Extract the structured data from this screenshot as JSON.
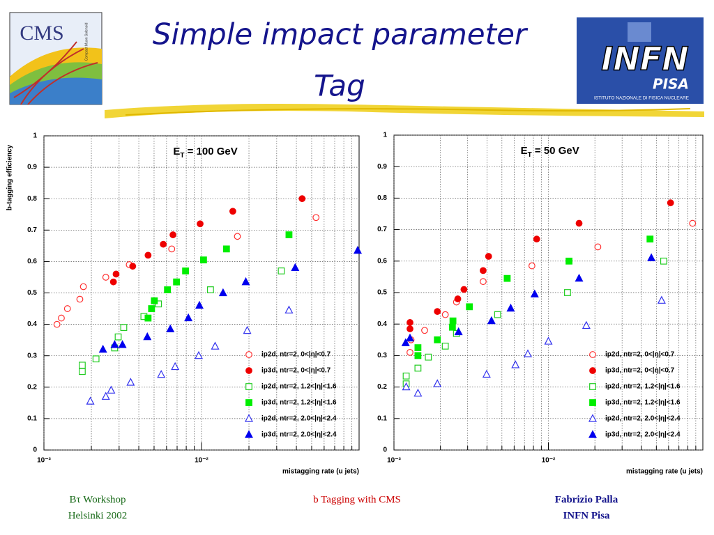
{
  "slide": {
    "title": [
      "Simple impact parameter",
      "Tag"
    ],
    "cms_logo": {
      "text": "CMS",
      "caption": "Compact Muon Solenoid"
    },
    "infn_logo": {
      "text": "INFN",
      "city": "PISA",
      "caption": "ISTITUTO NAZIONALE DI FISICA NUCLEARE"
    },
    "footer": {
      "left": [
        "Bτ Workshop",
        "Helsinki 2002"
      ],
      "center": "b Tagging with CMS",
      "right": [
        "Fabrizio Palla",
        "INFN Pisa"
      ]
    }
  },
  "chart_data": [
    {
      "type": "scatter",
      "annotation": [
        "E",
        "T",
        " = 100 GeV"
      ],
      "y_label": "b-tagging efficiency",
      "x_label": "mistagging rate (u jets)",
      "x_log": true,
      "xlim": [
        0.001,
        0.1
      ],
      "xticks": [
        {
          "value": 0.001,
          "label": "10⁻³"
        },
        {
          "value": 0.01,
          "label": "10⁻²"
        }
      ],
      "xminor": [
        0.002,
        0.003,
        0.004,
        0.005,
        0.006,
        0.007,
        0.008,
        0.009,
        0.02,
        0.03,
        0.04,
        0.05,
        0.06,
        0.07,
        0.08,
        0.09
      ],
      "ylim": [
        0,
        1
      ],
      "yticks": [
        0,
        0.1,
        0.2,
        0.3,
        0.4,
        0.5,
        0.6,
        0.7,
        0.8,
        0.9,
        1
      ],
      "grid": true,
      "legend": "lower right",
      "series": [
        {
          "name": "ip2d, ntr=2, 0<|η|<0.7",
          "color": "#ff3030",
          "marker": "circle",
          "filled": false,
          "x": [
            0.00121,
            0.00129,
            0.00141,
            0.00169,
            0.00178,
            0.00247,
            0.00348,
            0.00647,
            0.0169,
            0.0533
          ],
          "values": [
            0.4,
            0.42,
            0.45,
            0.48,
            0.52,
            0.55,
            0.59,
            0.64,
            0.68,
            0.74
          ]
        },
        {
          "name": "ip3d, ntr=2, 0<|η|<0.7",
          "color": "#ee0000",
          "marker": "circle",
          "filled": true,
          "x": [
            0.00276,
            0.00287,
            0.00366,
            0.00458,
            0.00572,
            0.00659,
            0.0098,
            0.0158,
            0.0435
          ],
          "values": [
            0.535,
            0.56,
            0.585,
            0.62,
            0.655,
            0.685,
            0.72,
            0.76,
            0.8
          ]
        },
        {
          "name": "ip2d, ntr=2, 1.2<|η|<1.6",
          "color": "#22cc22",
          "marker": "square",
          "filled": false,
          "x": [
            0.00175,
            0.00175,
            0.00214,
            0.00281,
            0.00296,
            0.00321,
            0.00431,
            0.00533,
            0.0114,
            0.0321
          ],
          "values": [
            0.25,
            0.27,
            0.29,
            0.325,
            0.36,
            0.39,
            0.425,
            0.465,
            0.51,
            0.57
          ]
        },
        {
          "name": "ip3d, ntr=2, 1.2<|η|<1.6",
          "color": "#00ee00",
          "marker": "square",
          "filled": true,
          "x": [
            0.00458,
            0.00482,
            0.00502,
            0.00608,
            0.00694,
            0.00792,
            0.0103,
            0.0144,
            0.0359
          ],
          "values": [
            0.42,
            0.45,
            0.475,
            0.51,
            0.535,
            0.57,
            0.605,
            0.64,
            0.685
          ]
        },
        {
          "name": "ip2d, ntr=2, 2.0<|η|<2.4",
          "color": "#3333ee",
          "marker": "triangle",
          "filled": false,
          "x": [
            0.00197,
            0.00247,
            0.00267,
            0.00355,
            0.00555,
            0.0068,
            0.0096,
            0.0122,
            0.0195,
            0.0359
          ],
          "values": [
            0.155,
            0.17,
            0.19,
            0.215,
            0.24,
            0.265,
            0.3,
            0.33,
            0.38,
            0.445
          ]
        },
        {
          "name": "ip3d, ntr=2, 2.0<|η|<2.4",
          "color": "#0000ee",
          "marker": "triangle",
          "filled": true,
          "x": [
            0.00237,
            0.00281,
            0.00315,
            0.00453,
            0.00634,
            0.00825,
            0.0097,
            0.0137,
            0.0191,
            0.0393,
            0.098
          ],
          "values": [
            0.32,
            0.335,
            0.335,
            0.36,
            0.385,
            0.42,
            0.46,
            0.5,
            0.535,
            0.58,
            0.635
          ]
        }
      ]
    },
    {
      "type": "scatter",
      "annotation": [
        "E",
        "T",
        " = 50 GeV"
      ],
      "x_label": "mistagging rate (u jets)",
      "x_log": true,
      "xlim": [
        0.001,
        0.1
      ],
      "xticks": [
        {
          "value": 0.001,
          "label": "10⁻³"
        },
        {
          "value": 0.01,
          "label": "10⁻²"
        }
      ],
      "xminor": [
        0.002,
        0.003,
        0.004,
        0.005,
        0.006,
        0.007,
        0.008,
        0.009,
        0.02,
        0.03,
        0.04,
        0.05,
        0.06,
        0.07,
        0.08,
        0.09
      ],
      "ylim": [
        0,
        1
      ],
      "yticks": [
        0,
        0.1,
        0.2,
        0.3,
        0.4,
        0.5,
        0.6,
        0.7,
        0.8,
        0.9,
        1
      ],
      "grid": true,
      "legend": "lower right",
      "series": [
        {
          "name": "ip2d, ntr=2, 0<|η|<0.7",
          "color": "#ff3030",
          "marker": "circle",
          "filled": false,
          "x": [
            0.00127,
            0.00129,
            0.00158,
            0.00215,
            0.00254,
            0.00378,
            0.00782,
            0.0209,
            0.0858
          ],
          "values": [
            0.31,
            0.35,
            0.38,
            0.43,
            0.47,
            0.535,
            0.585,
            0.645,
            0.72
          ]
        },
        {
          "name": "ip3d, ntr=2, 0<|η|<0.7",
          "color": "#ee0000",
          "marker": "circle",
          "filled": true,
          "x": [
            0.00127,
            0.00127,
            0.00191,
            0.00259,
            0.00284,
            0.00378,
            0.0041,
            0.0084,
            0.0158,
            0.0618
          ],
          "values": [
            0.385,
            0.405,
            0.44,
            0.48,
            0.51,
            0.57,
            0.615,
            0.67,
            0.72,
            0.785
          ]
        },
        {
          "name": "ip2d, ntr=2, 1.2<|η|<1.6",
          "color": "#22cc22",
          "marker": "square",
          "filled": false,
          "x": [
            0.0012,
            0.0012,
            0.00143,
            0.00167,
            0.00215,
            0.00254,
            0.00469,
            0.0133,
            0.0558
          ],
          "values": [
            0.21,
            0.235,
            0.26,
            0.295,
            0.33,
            0.37,
            0.43,
            0.5,
            0.6
          ]
        },
        {
          "name": "ip3d, ntr=2, 1.2<|η|<1.6",
          "color": "#00ee00",
          "marker": "square",
          "filled": true,
          "x": [
            0.00143,
            0.00143,
            0.00191,
            0.00239,
            0.00241,
            0.00308,
            0.00541,
            0.0136,
            0.0455
          ],
          "values": [
            0.3,
            0.325,
            0.35,
            0.39,
            0.41,
            0.455,
            0.545,
            0.6,
            0.67
          ]
        },
        {
          "name": "ip2d, ntr=2, 2.0<|η|<2.4",
          "color": "#3333ee",
          "marker": "triangle",
          "filled": false,
          "x": [
            0.00143,
            0.0012,
            0.00191,
            0.00398,
            0.00612,
            0.00736,
            0.01,
            0.0176,
            0.0541
          ],
          "values": [
            0.18,
            0.2,
            0.21,
            0.24,
            0.27,
            0.305,
            0.345,
            0.395,
            0.475
          ]
        },
        {
          "name": "ip3d, ntr=2, 2.0<|η|<2.4",
          "color": "#0000ee",
          "marker": "triangle",
          "filled": true,
          "x": [
            0.00119,
            0.00127,
            0.00262,
            0.00428,
            0.0057,
            0.00815,
            0.0158,
            0.0464
          ],
          "values": [
            0.34,
            0.355,
            0.375,
            0.41,
            0.45,
            0.495,
            0.545,
            0.61
          ]
        }
      ]
    }
  ]
}
